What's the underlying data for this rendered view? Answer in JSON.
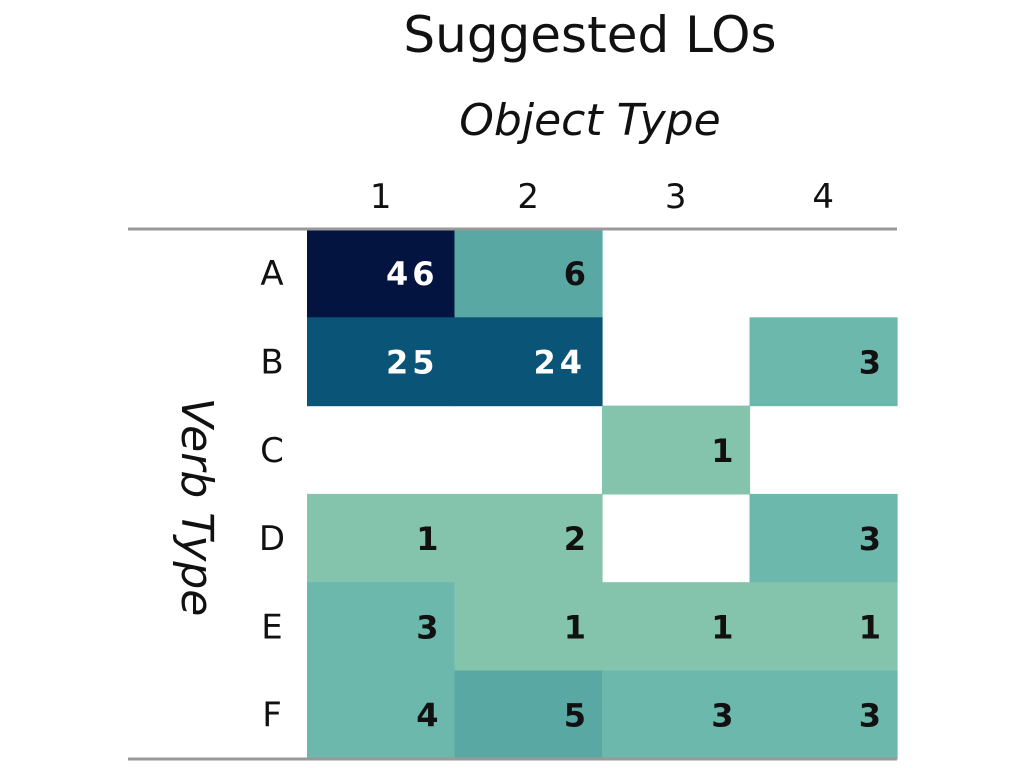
{
  "chart_data": {
    "type": "heatmap",
    "title": "Suggested LOs",
    "xlabel": "Object Type",
    "ylabel": "Verb Type",
    "x_categories": [
      "1",
      "2",
      "3",
      "4"
    ],
    "y_categories": [
      "A",
      "B",
      "C",
      "D",
      "E",
      "F"
    ],
    "values": [
      [
        46,
        6,
        null,
        null
      ],
      [
        25,
        24,
        null,
        3
      ],
      [
        null,
        null,
        1,
        null
      ],
      [
        1,
        2,
        null,
        3
      ],
      [
        3,
        1,
        1,
        1
      ],
      [
        4,
        5,
        3,
        3
      ]
    ],
    "colors": {
      "high": "#041440",
      "dark": "#0a5478",
      "mid": "#5aa8a4",
      "low": "#84c4ac",
      "empty": "#ffffff",
      "rule": "#999999",
      "text_dark": "#111111",
      "text_light": "#ffffff"
    }
  }
}
